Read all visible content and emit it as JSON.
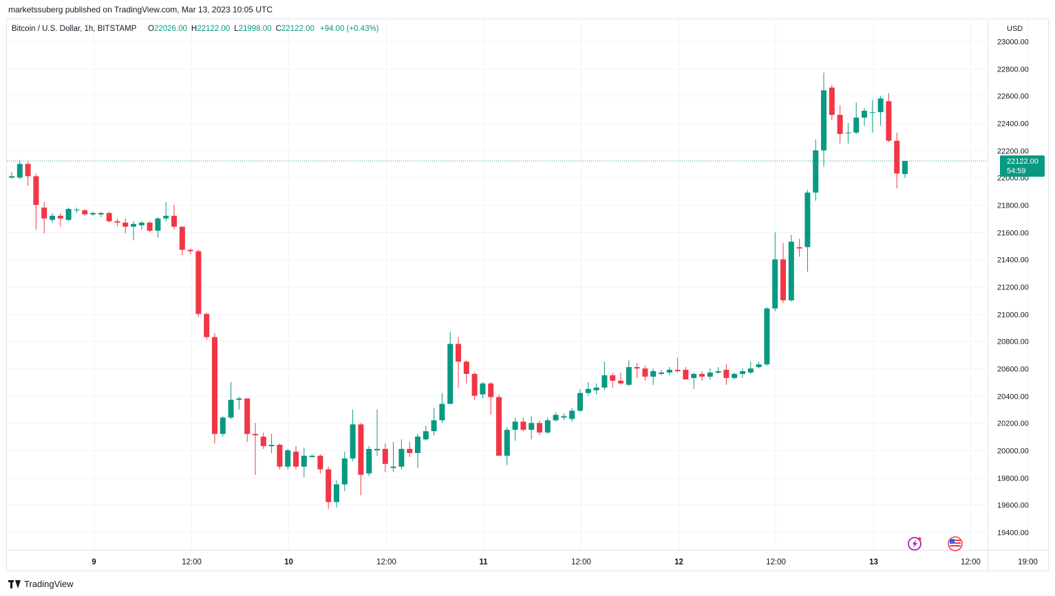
{
  "header": {
    "publish_line": "marketssuberg published on TradingView.com, Mar 13, 2023 10:05 UTC"
  },
  "footer": {
    "brand": "TradingView"
  },
  "legend": {
    "symbol": "Bitcoin / U.S. Dollar, 1h, BITSTAMP",
    "o_label": "O",
    "o_value": "22026.00",
    "h_label": "H",
    "h_value": "22122.00",
    "l_label": "L",
    "l_value": "21998.00",
    "c_label": "C",
    "c_value": "22122.00",
    "change": "+94.00 (+0.43%)"
  },
  "price_axis": {
    "currency": "USD",
    "last_price_label": "22122.00",
    "countdown": "54:59"
  },
  "colors": {
    "up": "#089981",
    "down": "#f23645",
    "grid": "#f0f3fa",
    "text": "#131722",
    "last_price_line": "#089981",
    "icon_purple": "#9c27b0",
    "icon_flag_red": "#f23645"
  },
  "icons": [
    "lightning-icon",
    "us-flag-icon",
    "tradingview-logo-icon"
  ],
  "chart_data": {
    "type": "candlestick",
    "title": "Bitcoin / U.S. Dollar, 1h, BITSTAMP",
    "ylabel": "USD",
    "ylim": [
      19300,
      23100
    ],
    "y_ticks": [
      19400,
      19600,
      19800,
      20000,
      20200,
      20400,
      20600,
      20800,
      21000,
      21200,
      21400,
      21600,
      21800,
      22000,
      22200,
      22400,
      22600,
      22800,
      23000
    ],
    "x_tick_labels": [
      {
        "label": "9",
        "bar": 5
      },
      {
        "label": "12:00",
        "bar": 17
      },
      {
        "label": "10",
        "bar": 29
      },
      {
        "label": "12:00",
        "bar": 41
      },
      {
        "label": "11",
        "bar": 53
      },
      {
        "label": "12:00",
        "bar": 65
      },
      {
        "label": "12",
        "bar": 77
      },
      {
        "label": "12:00",
        "bar": 89
      },
      {
        "label": "13",
        "bar": 101
      },
      {
        "label": "12:00",
        "bar": 113
      },
      {
        "label": "19:00",
        "bar": 120
      }
    ],
    "last_price": 22122,
    "grid": true,
    "candles": [
      {
        "o": 22000,
        "h": 22040,
        "l": 21990,
        "c": 22010
      },
      {
        "o": 22000,
        "h": 22130,
        "l": 21990,
        "c": 22100
      },
      {
        "o": 22100,
        "h": 22120,
        "l": 21940,
        "c": 22010
      },
      {
        "o": 22010,
        "h": 22030,
        "l": 21620,
        "c": 21800
      },
      {
        "o": 21780,
        "h": 21820,
        "l": 21590,
        "c": 21700
      },
      {
        "o": 21690,
        "h": 21740,
        "l": 21670,
        "c": 21720
      },
      {
        "o": 21720,
        "h": 21740,
        "l": 21640,
        "c": 21700
      },
      {
        "o": 21690,
        "h": 21780,
        "l": 21680,
        "c": 21770
      },
      {
        "o": 21760,
        "h": 21780,
        "l": 21740,
        "c": 21765
      },
      {
        "o": 21760,
        "h": 21770,
        "l": 21720,
        "c": 21730
      },
      {
        "o": 21730,
        "h": 21750,
        "l": 21720,
        "c": 21740
      },
      {
        "o": 21730,
        "h": 21750,
        "l": 21710,
        "c": 21740
      },
      {
        "o": 21740,
        "h": 21750,
        "l": 21670,
        "c": 21680
      },
      {
        "o": 21680,
        "h": 21700,
        "l": 21640,
        "c": 21670
      },
      {
        "o": 21670,
        "h": 21700,
        "l": 21590,
        "c": 21640
      },
      {
        "o": 21640,
        "h": 21680,
        "l": 21540,
        "c": 21660
      },
      {
        "o": 21650,
        "h": 21680,
        "l": 21620,
        "c": 21670
      },
      {
        "o": 21670,
        "h": 21680,
        "l": 21600,
        "c": 21610
      },
      {
        "o": 21610,
        "h": 21710,
        "l": 21560,
        "c": 21700
      },
      {
        "o": 21700,
        "h": 21820,
        "l": 21680,
        "c": 21720
      },
      {
        "o": 21720,
        "h": 21800,
        "l": 21620,
        "c": 21640
      },
      {
        "o": 21640,
        "h": 21640,
        "l": 21430,
        "c": 21470
      },
      {
        "o": 21470,
        "h": 21480,
        "l": 21440,
        "c": 21460
      },
      {
        "o": 21460,
        "h": 21470,
        "l": 20980,
        "c": 21000
      },
      {
        "o": 21000,
        "h": 21010,
        "l": 20810,
        "c": 20830
      },
      {
        "o": 20830,
        "h": 20860,
        "l": 20050,
        "c": 20120
      },
      {
        "o": 20120,
        "h": 20250,
        "l": 20100,
        "c": 20240
      },
      {
        "o": 20240,
        "h": 20500,
        "l": 20230,
        "c": 20370
      },
      {
        "o": 20370,
        "h": 20390,
        "l": 20300,
        "c": 20380
      },
      {
        "o": 20380,
        "h": 20380,
        "l": 20060,
        "c": 20120
      },
      {
        "o": 20120,
        "h": 20200,
        "l": 19820,
        "c": 20110
      },
      {
        "o": 20100,
        "h": 20130,
        "l": 20010,
        "c": 20030
      },
      {
        "o": 20030,
        "h": 20120,
        "l": 19980,
        "c": 20040
      },
      {
        "o": 20040,
        "h": 20050,
        "l": 19860,
        "c": 19880
      },
      {
        "o": 19880,
        "h": 20010,
        "l": 19860,
        "c": 20000
      },
      {
        "o": 19990,
        "h": 20030,
        "l": 19860,
        "c": 19880
      },
      {
        "o": 19880,
        "h": 20020,
        "l": 19800,
        "c": 19960
      },
      {
        "o": 19950,
        "h": 19970,
        "l": 19950,
        "c": 19960
      },
      {
        "o": 19960,
        "h": 19970,
        "l": 19830,
        "c": 19860
      },
      {
        "o": 19860,
        "h": 19880,
        "l": 19570,
        "c": 19620
      },
      {
        "o": 19620,
        "h": 19780,
        "l": 19580,
        "c": 19750
      },
      {
        "o": 19750,
        "h": 19990,
        "l": 19700,
        "c": 19940
      },
      {
        "o": 19940,
        "h": 20300,
        "l": 19920,
        "c": 20190
      },
      {
        "o": 20190,
        "h": 20200,
        "l": 19670,
        "c": 19820
      },
      {
        "o": 19830,
        "h": 20030,
        "l": 19810,
        "c": 20010
      },
      {
        "o": 20000,
        "h": 20300,
        "l": 19960,
        "c": 20010
      },
      {
        "o": 20010,
        "h": 20050,
        "l": 19840,
        "c": 19900
      },
      {
        "o": 19870,
        "h": 20060,
        "l": 19840,
        "c": 19880
      },
      {
        "o": 19880,
        "h": 20080,
        "l": 19860,
        "c": 20010
      },
      {
        "o": 20010,
        "h": 20060,
        "l": 19950,
        "c": 19980
      },
      {
        "o": 19980,
        "h": 20120,
        "l": 19870,
        "c": 20100
      },
      {
        "o": 20080,
        "h": 20180,
        "l": 20070,
        "c": 20140
      },
      {
        "o": 20140,
        "h": 20310,
        "l": 20110,
        "c": 20220
      },
      {
        "o": 20220,
        "h": 20420,
        "l": 20200,
        "c": 20340
      },
      {
        "o": 20340,
        "h": 20870,
        "l": 20340,
        "c": 20780
      },
      {
        "o": 20780,
        "h": 20830,
        "l": 20460,
        "c": 20650
      },
      {
        "o": 20650,
        "h": 20660,
        "l": 20490,
        "c": 20560
      },
      {
        "o": 20560,
        "h": 20570,
        "l": 20370,
        "c": 20400
      },
      {
        "o": 20410,
        "h": 20500,
        "l": 20380,
        "c": 20490
      },
      {
        "o": 20490,
        "h": 20500,
        "l": 20260,
        "c": 20390
      },
      {
        "o": 20390,
        "h": 20410,
        "l": 19960,
        "c": 19960
      },
      {
        "o": 19960,
        "h": 20170,
        "l": 19890,
        "c": 20150
      },
      {
        "o": 20150,
        "h": 20240,
        "l": 20070,
        "c": 20210
      },
      {
        "o": 20210,
        "h": 20240,
        "l": 20140,
        "c": 20150
      },
      {
        "o": 20150,
        "h": 20250,
        "l": 20080,
        "c": 20200
      },
      {
        "o": 20200,
        "h": 20220,
        "l": 20110,
        "c": 20130
      },
      {
        "o": 20130,
        "h": 20240,
        "l": 20120,
        "c": 20220
      },
      {
        "o": 20220,
        "h": 20280,
        "l": 20210,
        "c": 20260
      },
      {
        "o": 20240,
        "h": 20270,
        "l": 20220,
        "c": 20250
      },
      {
        "o": 20230,
        "h": 20310,
        "l": 20210,
        "c": 20290
      },
      {
        "o": 20290,
        "h": 20450,
        "l": 20280,
        "c": 20420
      },
      {
        "o": 20420,
        "h": 20500,
        "l": 20400,
        "c": 20450
      },
      {
        "o": 20440,
        "h": 20490,
        "l": 20410,
        "c": 20460
      },
      {
        "o": 20460,
        "h": 20650,
        "l": 20440,
        "c": 20550
      },
      {
        "o": 20550,
        "h": 20570,
        "l": 20460,
        "c": 20510
      },
      {
        "o": 20510,
        "h": 20570,
        "l": 20480,
        "c": 20490
      },
      {
        "o": 20480,
        "h": 20660,
        "l": 20470,
        "c": 20610
      },
      {
        "o": 20610,
        "h": 20640,
        "l": 20530,
        "c": 20600
      },
      {
        "o": 20600,
        "h": 20620,
        "l": 20510,
        "c": 20540
      },
      {
        "o": 20540,
        "h": 20600,
        "l": 20480,
        "c": 20580
      },
      {
        "o": 20560,
        "h": 20590,
        "l": 20550,
        "c": 20570
      },
      {
        "o": 20570,
        "h": 20610,
        "l": 20550,
        "c": 20590
      },
      {
        "o": 20590,
        "h": 20680,
        "l": 20570,
        "c": 20580
      },
      {
        "o": 20590,
        "h": 20610,
        "l": 20520,
        "c": 20520
      },
      {
        "o": 20530,
        "h": 20570,
        "l": 20450,
        "c": 20560
      },
      {
        "o": 20560,
        "h": 20580,
        "l": 20510,
        "c": 20540
      },
      {
        "o": 20540,
        "h": 20600,
        "l": 20520,
        "c": 20570
      },
      {
        "o": 20570,
        "h": 20610,
        "l": 20560,
        "c": 20580
      },
      {
        "o": 20590,
        "h": 20630,
        "l": 20480,
        "c": 20530
      },
      {
        "o": 20530,
        "h": 20570,
        "l": 20520,
        "c": 20560
      },
      {
        "o": 20560,
        "h": 20600,
        "l": 20530,
        "c": 20580
      },
      {
        "o": 20570,
        "h": 20650,
        "l": 20560,
        "c": 20600
      },
      {
        "o": 20610,
        "h": 20650,
        "l": 20600,
        "c": 20630
      },
      {
        "o": 20630,
        "h": 21050,
        "l": 20620,
        "c": 21040
      },
      {
        "o": 21040,
        "h": 21600,
        "l": 21020,
        "c": 21400
      },
      {
        "o": 21400,
        "h": 21520,
        "l": 21080,
        "c": 21100
      },
      {
        "o": 21100,
        "h": 21580,
        "l": 21090,
        "c": 21530
      },
      {
        "o": 21490,
        "h": 21550,
        "l": 21420,
        "c": 21480
      },
      {
        "o": 21490,
        "h": 21910,
        "l": 21310,
        "c": 21890
      },
      {
        "o": 21890,
        "h": 22280,
        "l": 21830,
        "c": 22200
      },
      {
        "o": 22200,
        "h": 22770,
        "l": 22080,
        "c": 22640
      },
      {
        "o": 22660,
        "h": 22680,
        "l": 22420,
        "c": 22460
      },
      {
        "o": 22460,
        "h": 22530,
        "l": 22250,
        "c": 22320
      },
      {
        "o": 22330,
        "h": 22400,
        "l": 22250,
        "c": 22330
      },
      {
        "o": 22330,
        "h": 22550,
        "l": 22320,
        "c": 22440
      },
      {
        "o": 22440,
        "h": 22510,
        "l": 22380,
        "c": 22490
      },
      {
        "o": 22480,
        "h": 22570,
        "l": 22330,
        "c": 22480
      },
      {
        "o": 22480,
        "h": 22600,
        "l": 22380,
        "c": 22580
      },
      {
        "o": 22560,
        "h": 22620,
        "l": 22260,
        "c": 22270
      },
      {
        "o": 22270,
        "h": 22330,
        "l": 21920,
        "c": 22030
      },
      {
        "o": 22026,
        "h": 22122,
        "l": 21998,
        "c": 22122
      }
    ]
  }
}
